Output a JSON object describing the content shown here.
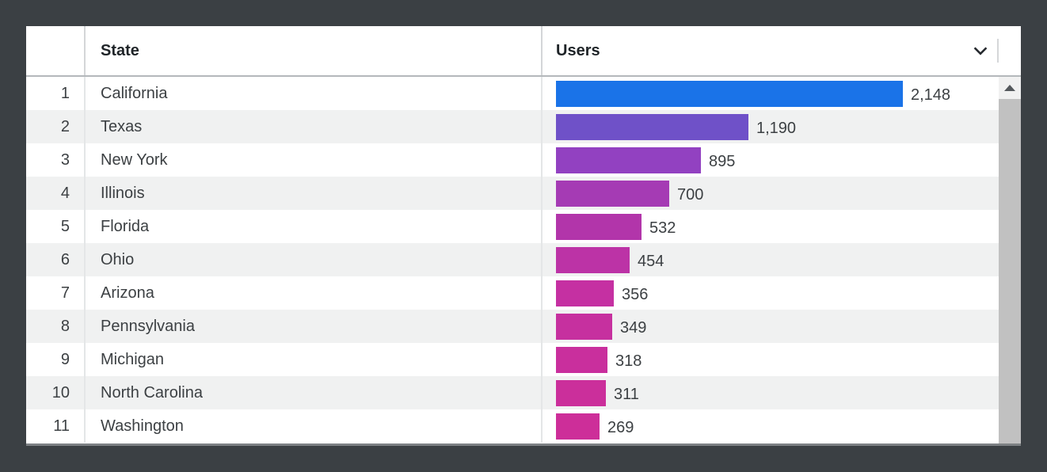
{
  "table": {
    "columns": {
      "rank": "",
      "state": "State",
      "users": "Users"
    },
    "rows": [
      {
        "rank": "1",
        "state": "California",
        "users": "2,148",
        "value": 2148,
        "color": "#1a73e8"
      },
      {
        "rank": "2",
        "state": "Texas",
        "users": "1,190",
        "value": 1190,
        "color": "#6f51c8"
      },
      {
        "rank": "3",
        "state": "New York",
        "users": "895",
        "value": 895,
        "color": "#9241c1"
      },
      {
        "rank": "4",
        "state": "Illinois",
        "users": "700",
        "value": 700,
        "color": "#a53bb4"
      },
      {
        "rank": "5",
        "state": "Florida",
        "users": "532",
        "value": 532,
        "color": "#b235aa"
      },
      {
        "rank": "6",
        "state": "Ohio",
        "users": "454",
        "value": 454,
        "color": "#bc33a6"
      },
      {
        "rank": "7",
        "state": "Arizona",
        "users": "356",
        "value": 356,
        "color": "#c530a2"
      },
      {
        "rank": "8",
        "state": "Pennsylvania",
        "users": "349",
        "value": 349,
        "color": "#c6309f"
      },
      {
        "rank": "9",
        "state": "Michigan",
        "users": "318",
        "value": 318,
        "color": "#c92f9d"
      },
      {
        "rank": "10",
        "state": "North Carolina",
        "users": "311",
        "value": 311,
        "color": "#cb2f9b"
      },
      {
        "rank": "11",
        "state": "Washington",
        "users": "269",
        "value": 269,
        "color": "#cd2e99"
      }
    ]
  },
  "icons": {
    "users_sort": "chevron-down-icon",
    "scroll_up": "scroll-up-arrow-icon"
  },
  "colors": {
    "canvas_background": "#3b4044",
    "panel_background": "#ffffff",
    "row_alternate": "#f0f1f1",
    "header_text": "#1f2428",
    "row_text": "#3c4043",
    "scrollbar_thumb": "#c1c1c1",
    "scrollbar_track": "#f1f1f1",
    "top_bar_color": "#1a73e8",
    "bottom_bar_color": "#cd2e99"
  },
  "chart_data": {
    "type": "bar",
    "orientation": "horizontal",
    "title": "",
    "xlabel": "Users",
    "ylabel": "State",
    "categories": [
      "California",
      "Texas",
      "New York",
      "Illinois",
      "Florida",
      "Ohio",
      "Arizona",
      "Pennsylvania",
      "Michigan",
      "North Carolina",
      "Washington"
    ],
    "values": [
      2148,
      1190,
      895,
      700,
      532,
      454,
      356,
      349,
      318,
      311,
      269
    ],
    "value_labels": [
      "2,148",
      "1,190",
      "895",
      "700",
      "532",
      "454",
      "356",
      "349",
      "318",
      "311",
      "269"
    ],
    "xlim": [
      0,
      2148
    ],
    "grid": false,
    "legend": false,
    "bar_colors": [
      "#1a73e8",
      "#6f51c8",
      "#9241c1",
      "#a53bb4",
      "#b235aa",
      "#bc33a6",
      "#c530a2",
      "#c6309f",
      "#c92f9d",
      "#cb2f9b",
      "#cd2e99"
    ]
  }
}
